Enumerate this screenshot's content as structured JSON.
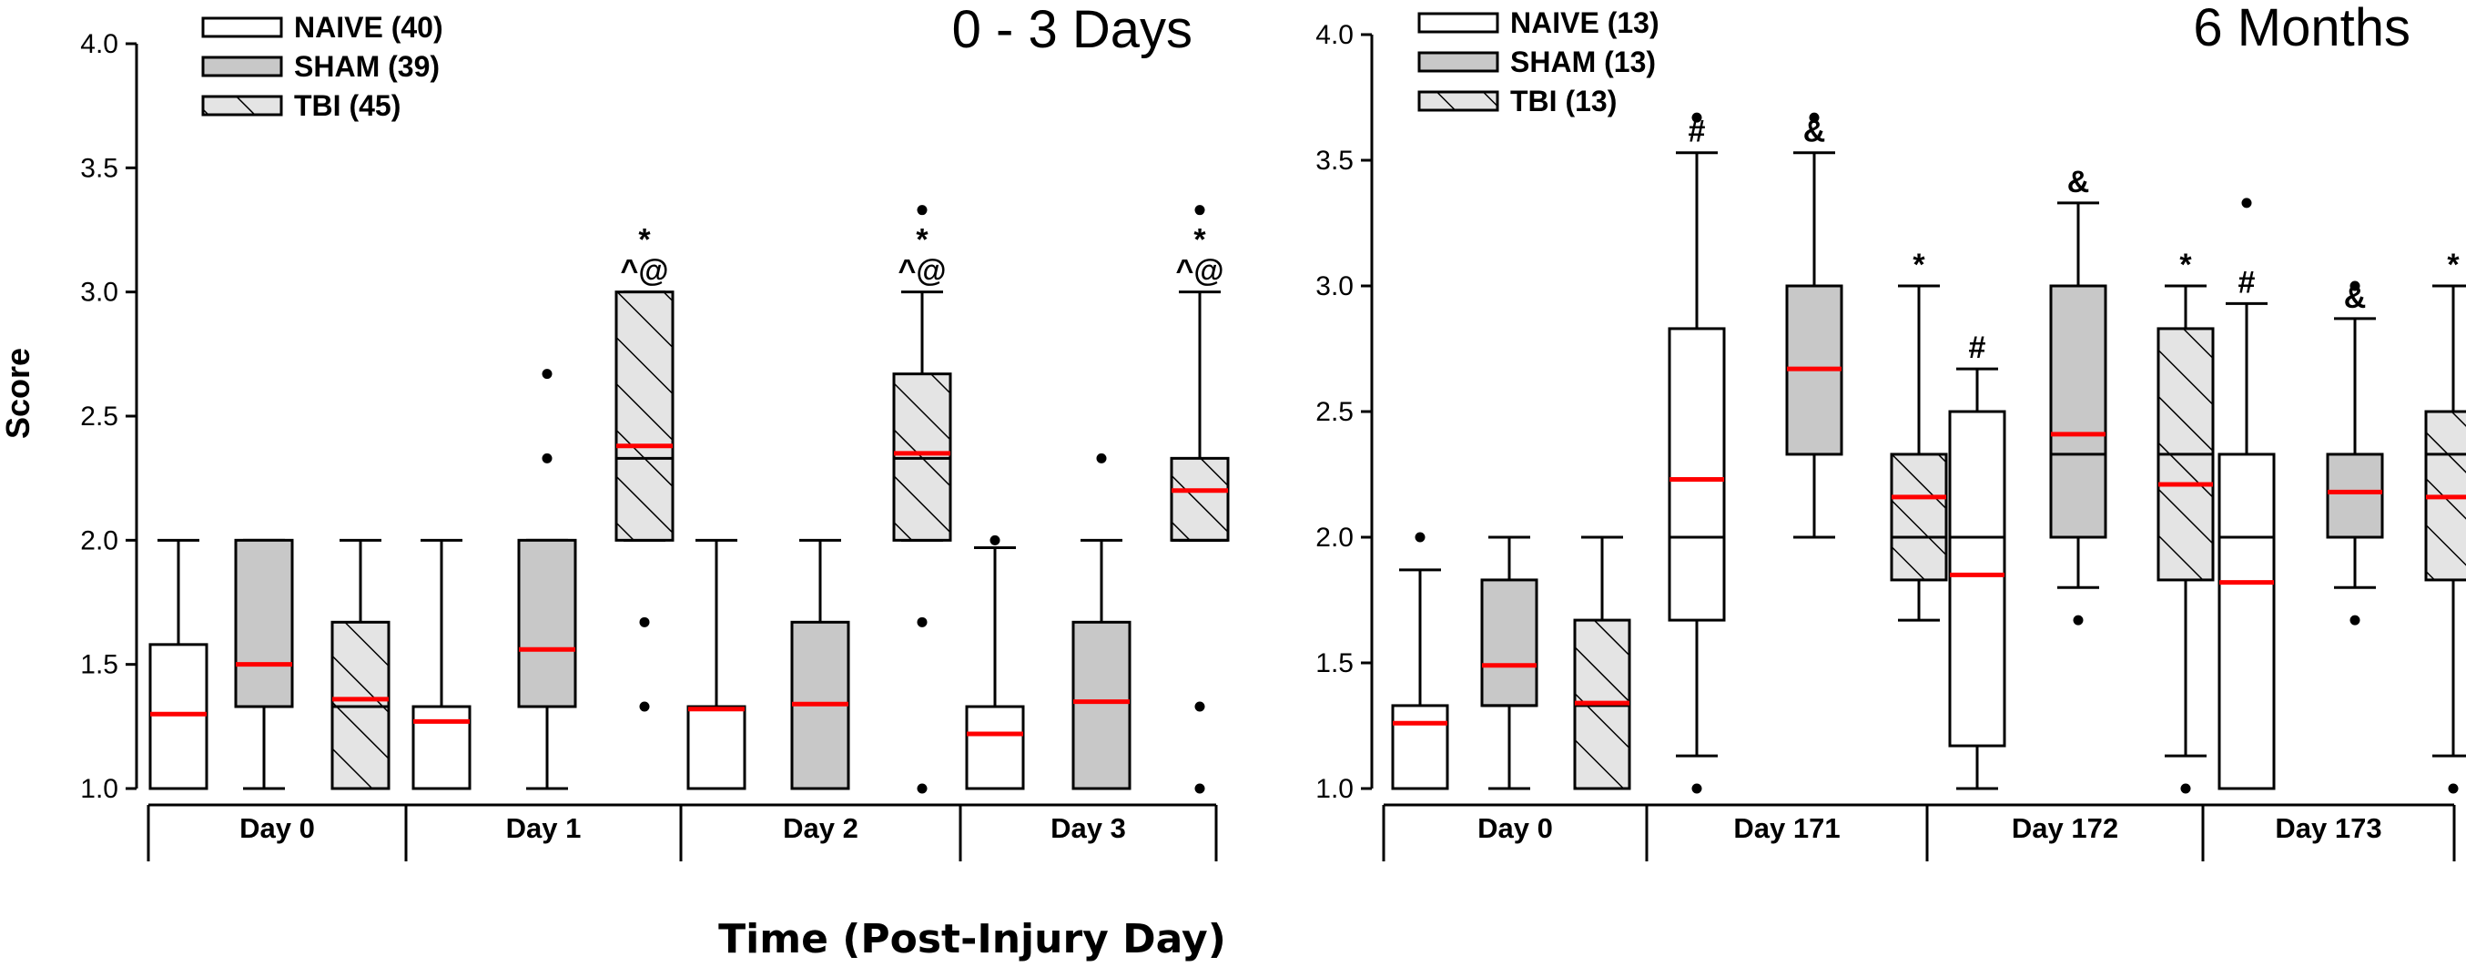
{
  "figure": {
    "ylabel": "Score",
    "xlabel": "Time (Post-Injury Day)"
  },
  "legend_marker_styles": {
    "NAIVE": "white",
    "SHAM": "gray",
    "TBI": "hatched"
  },
  "colors": {
    "naive_fill": "#ffffff",
    "sham_fill": "#c8c8c8",
    "tbi_fill": "#e4e4e4",
    "median_mean": "#ff0000",
    "axis": "#000000"
  },
  "chart_data": [
    {
      "type": "box",
      "title": "0 - 3 Days",
      "ylabel": "Score",
      "ylim": [
        1.0,
        4.0
      ],
      "yticks": [
        "1.0",
        "1.5",
        "2.0",
        "2.5",
        "3.0",
        "3.5",
        "4.0"
      ],
      "legend": [
        "NAIVE (40)",
        "SHAM (39)",
        "TBI (45)"
      ],
      "categories": [
        "Day 0",
        "Day 1",
        "Day 2",
        "Day 3"
      ],
      "series": [
        {
          "name": "NAIVE",
          "boxes": [
            {
              "q1": 1.0,
              "median": 1.0,
              "q3": 1.58,
              "wl": 1.0,
              "wh": 2.0,
              "mean": 1.3,
              "outliers": []
            },
            {
              "q1": 1.0,
              "median": 1.0,
              "q3": 1.33,
              "wl": 1.0,
              "wh": 2.0,
              "mean": 1.27,
              "outliers": []
            },
            {
              "q1": 1.0,
              "median": 1.0,
              "q3": 1.33,
              "wl": 1.0,
              "wh": 2.0,
              "mean": 1.32,
              "outliers": []
            },
            {
              "q1": 1.0,
              "median": 1.0,
              "q3": 1.33,
              "wl": 1.0,
              "wh": 1.97,
              "mean": 1.22,
              "outliers": [
                2.0
              ]
            }
          ]
        },
        {
          "name": "SHAM",
          "boxes": [
            {
              "q1": 1.33,
              "median": 1.33,
              "q3": 2.0,
              "wl": 1.0,
              "wh": 2.0,
              "mean": 1.5,
              "outliers": []
            },
            {
              "q1": 1.33,
              "median": 1.33,
              "q3": 2.0,
              "wl": 1.0,
              "wh": 2.0,
              "mean": 1.56,
              "outliers": [
                2.33,
                2.67
              ]
            },
            {
              "q1": 1.0,
              "median": 1.0,
              "q3": 1.67,
              "wl": 1.0,
              "wh": 2.0,
              "mean": 1.34,
              "outliers": []
            },
            {
              "q1": 1.0,
              "median": 1.0,
              "q3": 1.67,
              "wl": 1.0,
              "wh": 2.0,
              "mean": 1.35,
              "outliers": [
                2.33
              ]
            }
          ]
        },
        {
          "name": "TBI",
          "boxes": [
            {
              "q1": 1.0,
              "median": 1.33,
              "q3": 1.67,
              "wl": 1.0,
              "wh": 2.0,
              "mean": 1.36,
              "outliers": []
            },
            {
              "q1": 2.0,
              "median": 2.33,
              "q3": 3.0,
              "wl": 2.0,
              "wh": 3.0,
              "mean": 2.38,
              "outliers": [
                1.33,
                1.67
              ]
            },
            {
              "q1": 2.0,
              "median": 2.33,
              "q3": 2.67,
              "wl": 2.0,
              "wh": 3.0,
              "mean": 2.35,
              "outliers": [
                1.0,
                1.67,
                3.33
              ]
            },
            {
              "q1": 2.0,
              "median": 2.0,
              "q3": 2.33,
              "wl": 2.0,
              "wh": 3.0,
              "mean": 2.2,
              "outliers": [
                1.0,
                1.33,
                3.33
              ]
            }
          ]
        }
      ],
      "annotations": [
        {
          "category": "Day 1",
          "series": "TBI",
          "y": 3.0,
          "lines": [
            "*",
            "^@"
          ]
        },
        {
          "category": "Day 2",
          "series": "TBI",
          "y": 3.0,
          "lines": [
            "*",
            "^@"
          ]
        },
        {
          "category": "Day 3",
          "series": "TBI",
          "y": 3.0,
          "lines": [
            "*",
            "^@"
          ]
        }
      ]
    },
    {
      "type": "box",
      "title": "6 Months",
      "ylabel": "Score",
      "ylim": [
        1.0,
        4.0
      ],
      "yticks": [
        "1.0",
        "1.5",
        "2.0",
        "2.5",
        "3.0",
        "3.5",
        "4.0"
      ],
      "legend": [
        "NAIVE (13)",
        "SHAM (13)",
        "TBI (13)"
      ],
      "categories": [
        "Day 0",
        "Day 171",
        "Day 172",
        "Day 173"
      ],
      "series": [
        {
          "name": "NAIVE",
          "boxes": [
            {
              "q1": 1.0,
              "median": 1.0,
              "q3": 1.33,
              "wl": 1.0,
              "wh": 1.87,
              "mean": 1.26,
              "outliers": [
                2.0
              ]
            },
            {
              "q1": 1.67,
              "median": 2.0,
              "q3": 2.83,
              "wl": 1.13,
              "wh": 3.53,
              "mean": 2.23,
              "outliers": [
                1.0,
                3.67
              ]
            },
            {
              "q1": 1.17,
              "median": 2.0,
              "q3": 2.5,
              "wl": 1.0,
              "wh": 2.67,
              "mean": 1.85,
              "outliers": []
            },
            {
              "q1": 1.0,
              "median": 2.0,
              "q3": 2.33,
              "wl": 1.0,
              "wh": 2.93,
              "mean": 1.82,
              "outliers": [
                3.33
              ]
            }
          ]
        },
        {
          "name": "SHAM",
          "boxes": [
            {
              "q1": 1.33,
              "median": 1.33,
              "q3": 1.83,
              "wl": 1.0,
              "wh": 2.0,
              "mean": 1.49,
              "outliers": []
            },
            {
              "q1": 2.33,
              "median": 2.67,
              "q3": 3.0,
              "wl": 2.0,
              "wh": 3.53,
              "mean": 2.67,
              "outliers": [
                3.67
              ]
            },
            {
              "q1": 2.0,
              "median": 2.33,
              "q3": 3.0,
              "wl": 1.8,
              "wh": 3.33,
              "mean": 2.41,
              "outliers": [
                1.67
              ]
            },
            {
              "q1": 2.0,
              "median": 2.0,
              "q3": 2.33,
              "wl": 1.8,
              "wh": 2.87,
              "mean": 2.18,
              "outliers": [
                1.67,
                3.0
              ]
            }
          ]
        },
        {
          "name": "TBI",
          "boxes": [
            {
              "q1": 1.0,
              "median": 1.33,
              "q3": 1.67,
              "wl": 1.0,
              "wh": 2.0,
              "mean": 1.34,
              "outliers": []
            },
            {
              "q1": 1.83,
              "median": 2.0,
              "q3": 2.33,
              "wl": 1.67,
              "wh": 3.0,
              "mean": 2.16,
              "outliers": []
            },
            {
              "q1": 1.83,
              "median": 2.33,
              "q3": 2.83,
              "wl": 1.13,
              "wh": 3.0,
              "mean": 2.21,
              "outliers": [
                1.0
              ]
            },
            {
              "q1": 1.83,
              "median": 2.33,
              "q3": 2.5,
              "wl": 1.13,
              "wh": 3.0,
              "mean": 2.16,
              "outliers": [
                1.0
              ]
            }
          ]
        }
      ],
      "annotations": [
        {
          "category": "Day 171",
          "series": "NAIVE",
          "y": 3.53,
          "lines": [
            "#"
          ]
        },
        {
          "category": "Day 171",
          "series": "SHAM",
          "y": 3.53,
          "lines": [
            "&"
          ]
        },
        {
          "category": "Day 171",
          "series": "TBI",
          "y": 3.0,
          "lines": [
            "*"
          ]
        },
        {
          "category": "Day 172",
          "series": "NAIVE",
          "y": 2.67,
          "lines": [
            "#"
          ]
        },
        {
          "category": "Day 172",
          "series": "SHAM",
          "y": 3.33,
          "lines": [
            "&"
          ]
        },
        {
          "category": "Day 172",
          "series": "TBI",
          "y": 3.0,
          "lines": [
            "*"
          ]
        },
        {
          "category": "Day 173",
          "series": "NAIVE",
          "y": 2.93,
          "lines": [
            "#"
          ]
        },
        {
          "category": "Day 173",
          "series": "SHAM",
          "y": 2.87,
          "lines": [
            "&"
          ]
        },
        {
          "category": "Day 173",
          "series": "TBI",
          "y": 3.0,
          "lines": [
            "*"
          ]
        }
      ]
    }
  ]
}
